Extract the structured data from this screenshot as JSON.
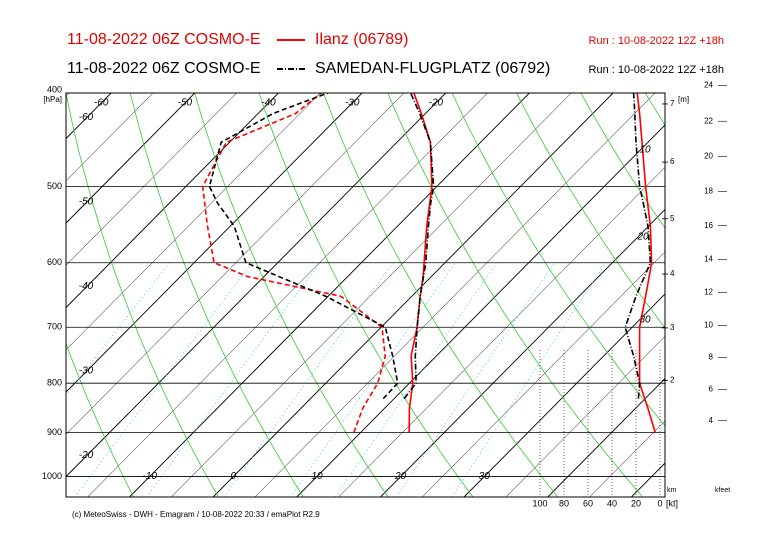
{
  "chart_data": {
    "type": "emagram",
    "stations": [
      {
        "model": "11-08-2022 06Z COSMO-E",
        "name": "Ilanz (06789)",
        "run": "Run : 10-08-2022 12Z +18h",
        "color": "#ff0000",
        "line_style": "solid",
        "pressure": [
          900,
          850,
          800,
          750,
          700,
          650,
          620,
          600,
          550,
          500,
          450,
          420,
          400
        ],
        "temperature": [
          15.8,
          13,
          10.4,
          7,
          4.3,
          1,
          -1,
          -2.5,
          -6.5,
          -10.6,
          -16,
          -20.5,
          -23.8
        ],
        "dewpoint": [
          9.2,
          7.4,
          6.2,
          3.9,
          0.1,
          -8.5,
          -22,
          -27.6,
          -32.7,
          -38,
          -40.4,
          -35.5,
          -34.9
        ],
        "wind_speed": [
          4,
          10,
          17,
          17,
          17,
          12,
          9,
          7,
          8,
          12,
          15,
          17,
          19
        ]
      },
      {
        "model": "11-08-2022 06Z COSMO-E",
        "name": "SAMEDAN-FLUGPLATZ (06792)",
        "run": "Run : 10-08-2022 12Z +18h",
        "color": "#000000",
        "line_style": "dashdot",
        "pressure": [
          830,
          800,
          750,
          700,
          650,
          600,
          550,
          520,
          500,
          450,
          420,
          400
        ],
        "temperature": [
          11.2,
          10.8,
          7.5,
          4.3,
          1,
          -2.3,
          -6.3,
          -8.8,
          -10.4,
          -16,
          -20.7,
          -24.2
        ],
        "dewpoint": [
          8.7,
          8.6,
          4.8,
          0.5,
          -10.3,
          -23.8,
          -29.5,
          -34.3,
          -37.2,
          -41,
          -38.2,
          -34.1
        ],
        "wind_speed": [
          18,
          17,
          22,
          29,
          20,
          8,
          10,
          14,
          17,
          20,
          21,
          22
        ]
      }
    ],
    "ylim": [
      1050,
      400
    ],
    "log_y": true,
    "yticks": [
      400,
      500,
      600,
      700,
      800,
      900,
      1000
    ],
    "y_unit": "[hPa]",
    "xlim": [
      -20,
      51.6
    ],
    "isotherm_labels_top": [
      -60,
      -50,
      -40,
      -30,
      -20
    ],
    "isotherm_labels_bottom": [
      -10,
      0,
      10,
      20,
      30
    ],
    "left_labels": [
      -60,
      -50,
      -40,
      -30,
      -20
    ],
    "wind_xlim": [
      100,
      0
    ],
    "wind_ticks": [
      100,
      80,
      60,
      40,
      20,
      0
    ],
    "wind_unit": "[kt]",
    "wind_profile_labels": [
      10,
      20,
      30
    ],
    "height_unit": "[m]",
    "height_km_ticks": [
      2,
      3,
      4,
      5,
      6,
      7
    ],
    "km_label": "km",
    "kfeet_ticks": [
      4,
      6,
      8,
      10,
      12,
      14,
      16,
      18,
      20,
      22,
      24
    ],
    "kfeet_label": "kfeet",
    "footer": "(c) MeteoSwiss - DWH - Emagram / 10-08-2022 20:33 / emaPlot R2.9"
  }
}
